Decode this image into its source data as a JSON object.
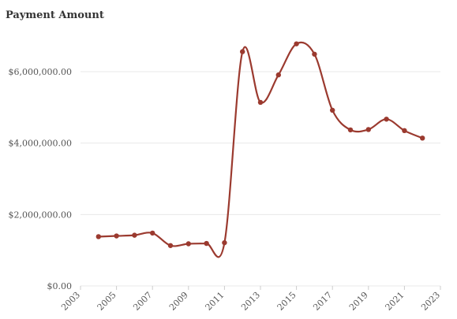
{
  "chart_data": {
    "type": "line",
    "title": "Payment Amount",
    "xlabel": "",
    "ylabel": "",
    "x_ticks": [
      "2003",
      "2005",
      "2007",
      "2009",
      "2011",
      "2013",
      "2015",
      "2017",
      "2019",
      "2021",
      "2023"
    ],
    "y_ticks": [
      "$0.00",
      "$2,000,000.00",
      "$4,000,000.00",
      "$6,000,000.00"
    ],
    "xlim": [
      2003,
      2023
    ],
    "ylim": [
      0,
      7000000
    ],
    "grid": true,
    "colors": {
      "line": "#9b3a2f",
      "grid": "#e8e8e8"
    },
    "series": [
      {
        "x": [
          2004,
          2005,
          2006,
          2007,
          2008,
          2009,
          2010,
          2011,
          2012,
          2013,
          2014,
          2015,
          2016,
          2017,
          2018,
          2019,
          2020,
          2021,
          2022
        ],
        "values": [
          1380000,
          1400000,
          1420000,
          1480000,
          1130000,
          1180000,
          1190000,
          1210000,
          6560000,
          5140000,
          5910000,
          6780000,
          6490000,
          4920000,
          4370000,
          4380000,
          4670000,
          4350000,
          4140000
        ]
      }
    ]
  }
}
